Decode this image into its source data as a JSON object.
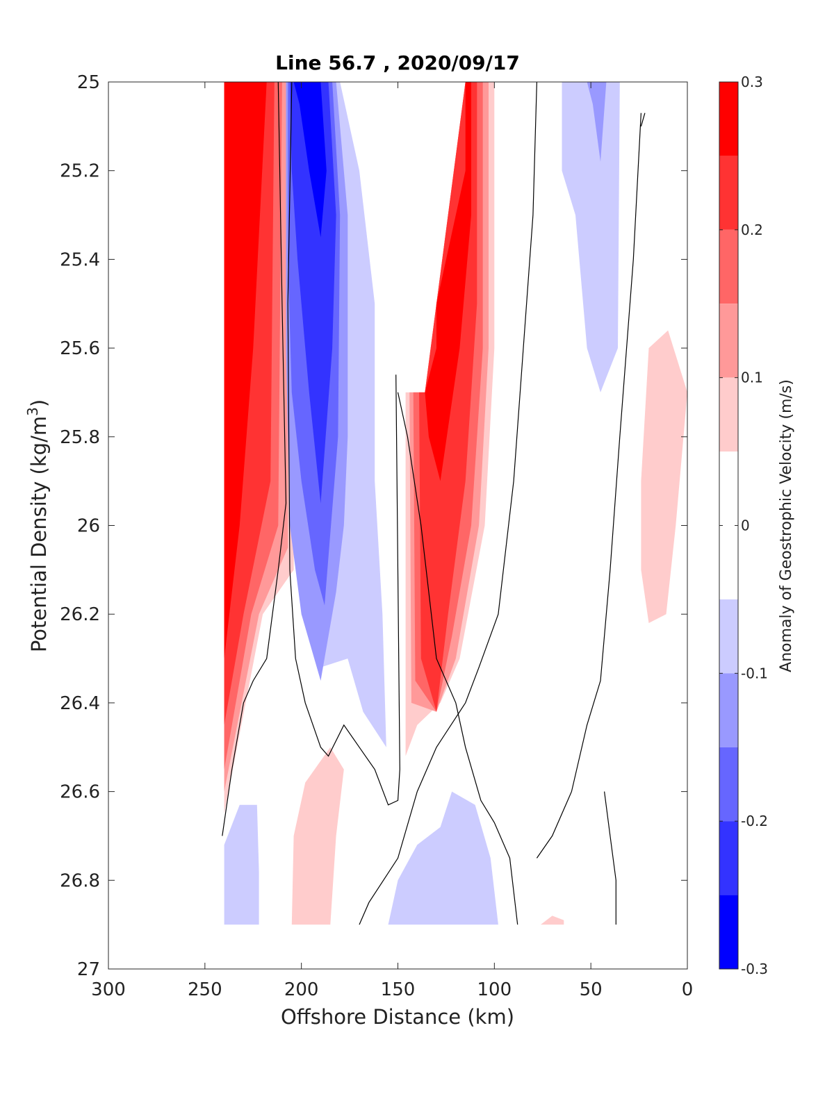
{
  "chart_data": {
    "type": "heatmap",
    "title": "Line 56.7 , 2020/09/17",
    "xlabel": "Offshore Distance (km)",
    "ylabel_main": "Potential Density (kg/m",
    "ylabel_sup": "3",
    "ylabel_close": ")",
    "xlim": [
      300,
      0
    ],
    "ylim": [
      25,
      27
    ],
    "x_reversed": true,
    "y_reversed": true,
    "grid": false,
    "x_ticks": [
      300,
      250,
      200,
      150,
      100,
      50,
      0
    ],
    "x_tick_labels": [
      "300",
      "250",
      "200",
      "150",
      "100",
      "50",
      "0"
    ],
    "y_ticks": [
      25,
      25.2,
      25.4,
      25.6,
      25.8,
      26,
      26.2,
      26.4,
      26.6,
      26.8,
      27
    ],
    "y_tick_labels": [
      "25",
      "25.2",
      "25.4",
      "25.6",
      "25.8",
      "26",
      "26.2",
      "26.4",
      "26.6",
      "26.8",
      "27"
    ],
    "colorbar": {
      "label": "Anomaly of Geostrophic Velocity (m/s)",
      "range": [
        -0.3,
        0.3
      ],
      "ticks": [
        0.3,
        0.2,
        0.1,
        0,
        -0.1,
        -0.2,
        -0.3
      ],
      "tick_labels": [
        "0.3",
        "0.2",
        "0.1",
        "0",
        "-0.1",
        "-0.2",
        "-0.3"
      ],
      "levels": [
        {
          "from": 0.25,
          "to": 0.3,
          "color": "#ff0000"
        },
        {
          "from": 0.2,
          "to": 0.25,
          "color": "#ff3333"
        },
        {
          "from": 0.15,
          "to": 0.2,
          "color": "#ff6666"
        },
        {
          "from": 0.1,
          "to": 0.15,
          "color": "#ff9999"
        },
        {
          "from": 0.05,
          "to": 0.1,
          "color": "#ffcccc"
        },
        {
          "from": -0.05,
          "to": 0.05,
          "color": "#ffffff"
        },
        {
          "from": -0.1,
          "to": -0.05,
          "color": "#ccccff"
        },
        {
          "from": -0.15,
          "to": -0.1,
          "color": "#9999ff"
        },
        {
          "from": -0.2,
          "to": -0.15,
          "color": "#6666ff"
        },
        {
          "from": -0.25,
          "to": -0.2,
          "color": "#3333ff"
        },
        {
          "from": -0.3,
          "to": -0.25,
          "color": "#0000ff"
        }
      ]
    },
    "regions": [
      {
        "name": "west-jet-0.05",
        "color": "#ffcccc",
        "points": [
          [
            240,
            25
          ],
          [
            204,
            25
          ],
          [
            204,
            26.1
          ],
          [
            220,
            26.2
          ],
          [
            240,
            26.65
          ]
        ]
      },
      {
        "name": "west-jet-0.10",
        "color": "#ff9999",
        "points": [
          [
            240,
            25
          ],
          [
            207,
            25
          ],
          [
            207,
            26.05
          ],
          [
            222,
            26.2
          ],
          [
            240,
            26.6
          ]
        ]
      },
      {
        "name": "west-jet-0.15",
        "color": "#ff6666",
        "points": [
          [
            240,
            25
          ],
          [
            210,
            25
          ],
          [
            212,
            26.0
          ],
          [
            226,
            26.2
          ],
          [
            240,
            26.55
          ]
        ]
      },
      {
        "name": "west-jet-0.20",
        "color": "#ff3333",
        "points": [
          [
            240,
            25
          ],
          [
            214,
            25
          ],
          [
            216,
            25.9
          ],
          [
            230,
            26.2
          ],
          [
            240,
            26.45
          ]
        ]
      },
      {
        "name": "west-jet-0.25",
        "color": "#ff0000",
        "points": [
          [
            240,
            25
          ],
          [
            218,
            25
          ],
          [
            225,
            25.6
          ],
          [
            232,
            26.0
          ],
          [
            240,
            26.3
          ]
        ]
      },
      {
        "name": "cyclone-0.05",
        "color": "#ccccff",
        "points": [
          [
            208,
            25
          ],
          [
            180,
            25
          ],
          [
            170,
            25.2
          ],
          [
            162,
            25.5
          ],
          [
            162,
            25.9
          ],
          [
            158,
            26.2
          ],
          [
            156,
            26.5
          ],
          [
            168,
            26.42
          ],
          [
            176,
            26.3
          ],
          [
            190,
            26.32
          ],
          [
            200,
            26.2
          ],
          [
            205,
            26.0
          ],
          [
            208,
            25.6
          ]
        ]
      },
      {
        "name": "cyclone-0.10",
        "color": "#9999ff",
        "points": [
          [
            208,
            25
          ],
          [
            182,
            25
          ],
          [
            176,
            25.3
          ],
          [
            176,
            25.8
          ],
          [
            178,
            26.0
          ],
          [
            182,
            26.15
          ],
          [
            190,
            26.35
          ],
          [
            200,
            26.2
          ],
          [
            206,
            26.0
          ],
          [
            208,
            25.6
          ]
        ]
      },
      {
        "name": "cyclone-0.15",
        "color": "#6666ff",
        "points": [
          [
            207,
            25
          ],
          [
            184,
            25
          ],
          [
            180,
            25.3
          ],
          [
            181,
            25.8
          ],
          [
            188,
            26.18
          ],
          [
            193,
            26.1
          ],
          [
            200,
            25.9
          ],
          [
            205,
            25.7
          ],
          [
            207,
            25.4
          ]
        ]
      },
      {
        "name": "cyclone-0.20",
        "color": "#3333ff",
        "points": [
          [
            206,
            25
          ],
          [
            186,
            25
          ],
          [
            182,
            25.3
          ],
          [
            184,
            25.6
          ],
          [
            190,
            25.95
          ],
          [
            196,
            25.7
          ],
          [
            202,
            25.4
          ],
          [
            205,
            25.2
          ]
        ]
      },
      {
        "name": "cyclone-0.25",
        "color": "#0000ff",
        "points": [
          [
            204,
            25
          ],
          [
            190,
            25
          ],
          [
            187,
            25.2
          ],
          [
            190,
            25.35
          ],
          [
            196,
            25.2
          ],
          [
            201,
            25.05
          ]
        ]
      },
      {
        "name": "coastal-jet-0.05",
        "color": "#ffcccc",
        "points": [
          [
            146,
            25.7
          ],
          [
            146,
            26.52
          ],
          [
            140,
            26.45
          ],
          [
            128,
            26.4
          ],
          [
            118,
            26.3
          ],
          [
            105,
            26.0
          ],
          [
            100,
            25.6
          ],
          [
            100,
            25
          ],
          [
            115,
            25
          ],
          [
            130,
            25.5
          ],
          [
            136,
            25.7
          ]
        ]
      },
      {
        "name": "coastal-jet-0.10",
        "color": "#ff9999",
        "points": [
          [
            144,
            25.7
          ],
          [
            143,
            26.4
          ],
          [
            130,
            26.42
          ],
          [
            120,
            26.3
          ],
          [
            108,
            26.0
          ],
          [
            103,
            25.6
          ],
          [
            103,
            25
          ],
          [
            115,
            25
          ],
          [
            130,
            25.5
          ],
          [
            136,
            25.7
          ]
        ]
      },
      {
        "name": "coastal-jet-0.15",
        "color": "#ff6666",
        "points": [
          [
            142,
            25.7
          ],
          [
            141,
            26.35
          ],
          [
            130,
            26.42
          ],
          [
            122,
            26.25
          ],
          [
            112,
            26.0
          ],
          [
            106,
            25.6
          ],
          [
            106,
            25
          ],
          [
            115,
            25
          ],
          [
            130,
            25.5
          ],
          [
            136,
            25.7
          ]
        ]
      },
      {
        "name": "coastal-jet-0.20",
        "color": "#ff3333",
        "points": [
          [
            139,
            25.7
          ],
          [
            138,
            26.3
          ],
          [
            130,
            26.42
          ],
          [
            124,
            26.2
          ],
          [
            115,
            25.9
          ],
          [
            109,
            25.5
          ],
          [
            109,
            25
          ],
          [
            115,
            25
          ],
          [
            130,
            25.5
          ],
          [
            136,
            25.7
          ]
        ]
      },
      {
        "name": "coastal-jet-0.25",
        "color": "#ff0000",
        "points": [
          [
            136,
            25.7
          ],
          [
            134,
            25.8
          ],
          [
            128,
            25.9
          ],
          [
            118,
            25.6
          ],
          [
            112,
            25.3
          ],
          [
            112,
            25
          ],
          [
            115,
            25
          ],
          [
            115,
            25.2
          ],
          [
            130,
            25.5
          ],
          [
            130,
            25.6
          ]
        ]
      },
      {
        "name": "nearshore-neg-0.05",
        "color": "#ccccff",
        "points": [
          [
            65,
            25
          ],
          [
            35,
            25
          ],
          [
            36,
            25.6
          ],
          [
            45,
            25.7
          ],
          [
            52,
            25.6
          ],
          [
            58,
            25.3
          ],
          [
            65,
            25.2
          ]
        ]
      },
      {
        "name": "nearshore-neg-0.10",
        "color": "#9999ff",
        "points": [
          [
            52,
            25
          ],
          [
            42,
            25
          ],
          [
            45,
            25.18
          ],
          [
            49,
            25.05
          ]
        ]
      },
      {
        "name": "nearshore-pos-0.05",
        "color": "#ffcccc",
        "points": [
          [
            20,
            25.6
          ],
          [
            10,
            25.56
          ],
          [
            0,
            25.7
          ],
          [
            6,
            26.0
          ],
          [
            11,
            26.2
          ],
          [
            20,
            26.22
          ],
          [
            24,
            26.1
          ],
          [
            24,
            25.9
          ]
        ]
      },
      {
        "name": "deep-pos-west-0.05",
        "color": "#ffcccc",
        "points": [
          [
            205,
            26.9
          ],
          [
            204,
            26.7
          ],
          [
            198,
            26.58
          ],
          [
            185,
            26.5
          ],
          [
            178,
            26.55
          ],
          [
            182,
            26.7
          ],
          [
            185,
            26.9
          ]
        ]
      },
      {
        "name": "deep-neg-west-0.05",
        "color": "#ccccff",
        "points": [
          [
            240,
            26.9
          ],
          [
            240,
            26.72
          ],
          [
            232,
            26.63
          ],
          [
            223,
            26.63
          ],
          [
            222,
            26.78
          ],
          [
            222,
            26.9
          ]
        ]
      },
      {
        "name": "deep-neg-center-0.05",
        "color": "#ccccff",
        "points": [
          [
            155,
            26.9
          ],
          [
            150,
            26.8
          ],
          [
            140,
            26.72
          ],
          [
            128,
            26.68
          ],
          [
            122,
            26.6
          ],
          [
            110,
            26.63
          ],
          [
            102,
            26.75
          ],
          [
            98,
            26.9
          ]
        ]
      },
      {
        "name": "deep-pos-east-0.05",
        "color": "#ffcccc",
        "points": [
          [
            76,
            26.9
          ],
          [
            70,
            26.88
          ],
          [
            64,
            26.89
          ],
          [
            64,
            26.9
          ]
        ]
      }
    ],
    "zero_contours": [
      [
        [
          212,
          25
        ],
        [
          210,
          25.5
        ],
        [
          208,
          25.95
        ],
        [
          212,
          26.1
        ],
        [
          218,
          26.3
        ],
        [
          225,
          26.35
        ],
        [
          230,
          26.4
        ],
        [
          236,
          26.55
        ],
        [
          241,
          26.7
        ]
      ],
      [
        [
          205,
          25
        ],
        [
          207,
          25.5
        ],
        [
          206,
          26.1
        ],
        [
          203,
          26.3
        ],
        [
          198,
          26.4
        ],
        [
          190,
          26.5
        ],
        [
          186,
          26.52
        ],
        [
          178,
          26.45
        ],
        [
          170,
          26.5
        ],
        [
          162,
          26.55
        ],
        [
          155,
          26.63
        ],
        [
          150,
          26.62
        ],
        [
          149,
          26.55
        ],
        [
          151,
          25.66
        ]
      ],
      [
        [
          78,
          25
        ],
        [
          80,
          25.3
        ],
        [
          85,
          25.6
        ],
        [
          90,
          25.9
        ],
        [
          98,
          26.2
        ],
        [
          108,
          26.32
        ],
        [
          115,
          26.4
        ],
        [
          130,
          26.5
        ],
        [
          140,
          26.6
        ],
        [
          150,
          26.75
        ],
        [
          165,
          26.85
        ],
        [
          170,
          26.9
        ]
      ],
      [
        [
          88,
          26.9
        ],
        [
          92,
          26.75
        ],
        [
          100,
          26.67
        ],
        [
          107,
          26.62
        ],
        [
          115,
          26.5
        ],
        [
          120,
          26.4
        ],
        [
          130,
          26.3
        ],
        [
          138,
          26.0
        ],
        [
          145,
          25.8
        ],
        [
          150,
          25.7
        ]
      ],
      [
        [
          24,
          25.07
        ],
        [
          28,
          25.4
        ],
        [
          35,
          25.8
        ],
        [
          40,
          26.1
        ],
        [
          45,
          26.35
        ],
        [
          52,
          26.45
        ],
        [
          60,
          26.6
        ],
        [
          70,
          26.7
        ],
        [
          78,
          26.75
        ]
      ],
      [
        [
          37,
          26.9
        ],
        [
          37,
          26.8
        ],
        [
          40,
          26.7
        ],
        [
          43,
          26.6
        ]
      ],
      [
        [
          22,
          25.07
        ],
        [
          24,
          25.1
        ]
      ]
    ]
  }
}
